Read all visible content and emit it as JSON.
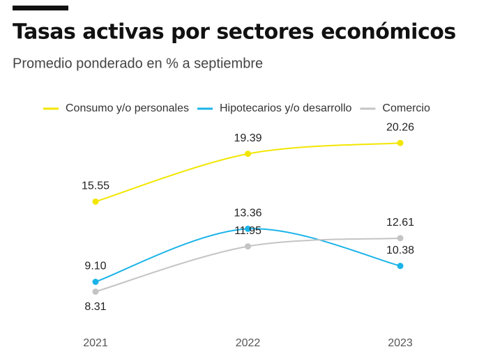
{
  "chart_data": {
    "type": "line",
    "title": "Tasas activas por sectores económicos",
    "subtitle": "Promedio ponderado en % a septiembre",
    "categories": [
      "2021",
      "2022",
      "2023"
    ],
    "series": [
      {
        "name": "Consumo y/o personales",
        "color": "#f2e600",
        "values": [
          15.55,
          19.39,
          20.26
        ],
        "value_labels": [
          "15.55",
          "19.39",
          "20.26"
        ]
      },
      {
        "name": "Hipotecarios y/o desarrollo",
        "color": "#1cb4e8",
        "values": [
          9.1,
          13.36,
          10.38
        ],
        "value_labels": [
          "9.10",
          "13.36",
          "10.38"
        ]
      },
      {
        "name": "Comercio",
        "color": "#c4c4c4",
        "values": [
          8.31,
          11.95,
          12.61
        ],
        "value_labels": [
          "8.31",
          "11.95",
          "12.61"
        ]
      }
    ],
    "ylim": [
      7,
      21
    ],
    "legend": "top"
  }
}
